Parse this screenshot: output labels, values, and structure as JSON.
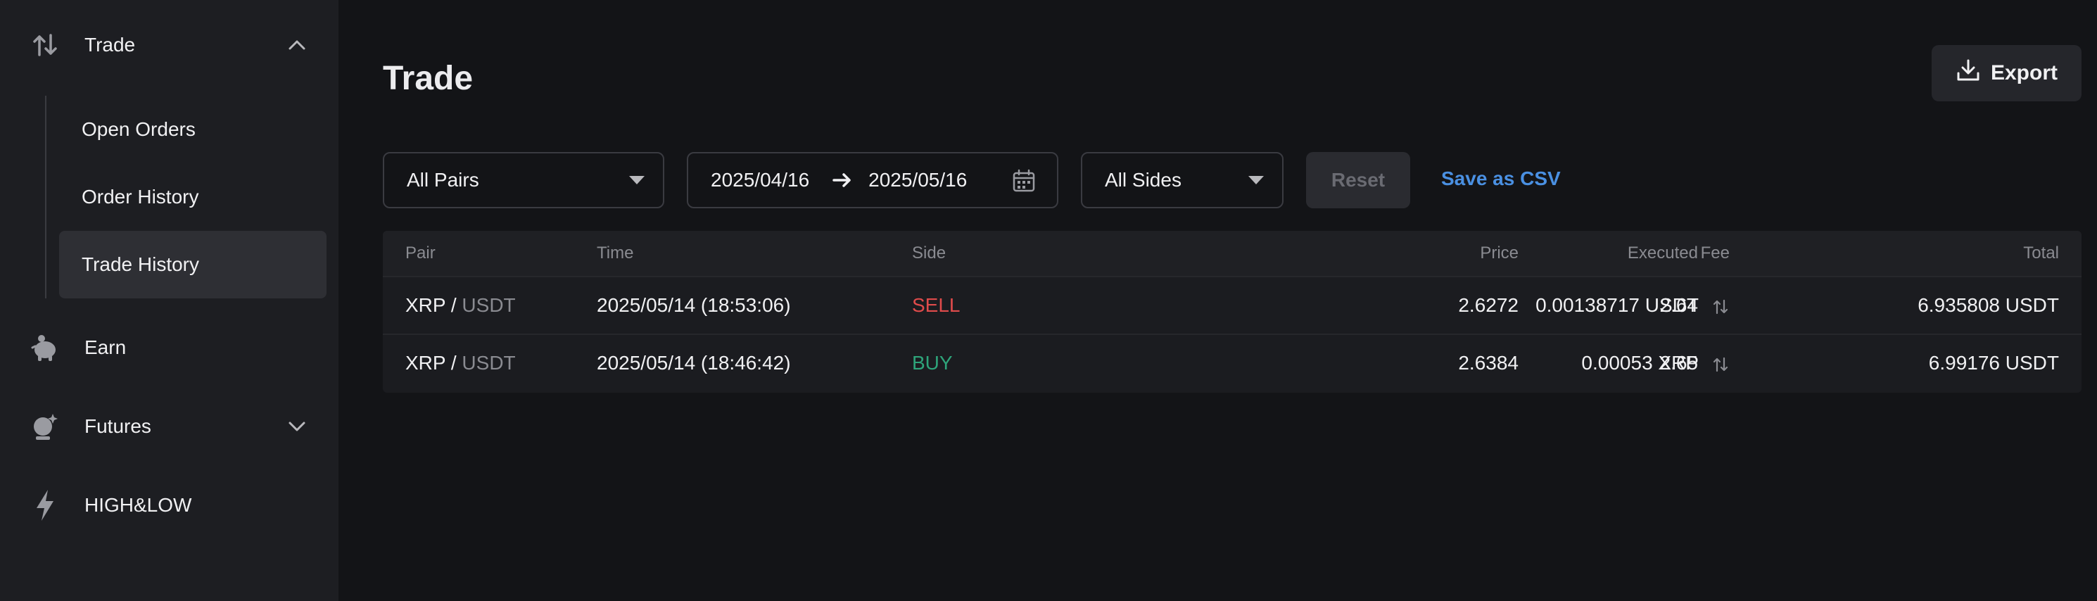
{
  "sidebar": {
    "trade": {
      "label": "Trade",
      "icon": "swap-vertical-icon"
    },
    "sub_items": [
      {
        "label": "Open Orders"
      },
      {
        "label": "Order History"
      },
      {
        "label": "Trade History",
        "active": true
      }
    ],
    "earn": {
      "label": "Earn",
      "icon": "piggy-bank-icon"
    },
    "futures": {
      "label": "Futures",
      "icon": "futures-icon"
    },
    "highlow": {
      "label": "HIGH&LOW",
      "icon": "lightning-icon"
    }
  },
  "main": {
    "title": "Trade",
    "export_label": "Export",
    "filters": {
      "pairs": "All Pairs",
      "date_from": "2025/04/16",
      "date_to": "2025/05/16",
      "sides": "All Sides",
      "reset": "Reset",
      "save_csv": "Save as CSV"
    },
    "table": {
      "headers": {
        "pair": "Pair",
        "time": "Time",
        "side": "Side",
        "price": "Price",
        "executed": "Executed",
        "fee": "Fee",
        "total": "Total"
      },
      "rows": [
        {
          "base": "XRP",
          "sep": " / ",
          "quote": "USDT",
          "time": "2025/05/14 (18:53:06)",
          "side": "SELL",
          "price": "2.6272",
          "executed": "2.64",
          "fee": "0.00138717 USDT",
          "total": "6.935808 USDT"
        },
        {
          "base": "XRP",
          "sep": " / ",
          "quote": "USDT",
          "time": "2025/05/14 (18:46:42)",
          "side": "BUY",
          "price": "2.6384",
          "executed": "2.65",
          "fee": "0.00053 XRP",
          "total": "6.99176 USDT"
        }
      ]
    }
  },
  "colors": {
    "sell": "#e04b4b",
    "buy": "#2ea47a",
    "link": "#4a90e2"
  }
}
